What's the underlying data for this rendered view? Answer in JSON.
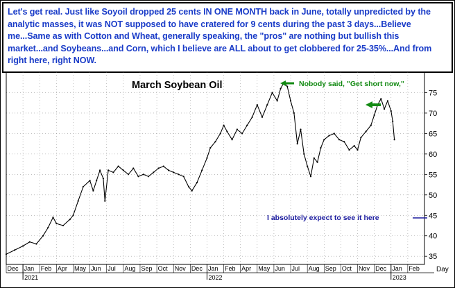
{
  "banner": {
    "text": "Let's get real. Just like Soyoil dropped 25 cents IN ONE MONTH back in June, totally unpredicted by the analytic masses, it was NOT supposed to have cratered for 9 cents during the past 3 days...Believe me...Same as with Cotton and Wheat, generally speaking, the \"pros\" are nothing but bullish this market...and Soybeans...and Corn, which I believe are ALL about to get clobbered for 25-35%...And from right here, right NOW."
  },
  "colors": {
    "price": "#000000",
    "grid": "#999999",
    "annotation_green": "#138a13",
    "annotation_blue": "#1a1a9e",
    "banner_text": "#1a3cc8"
  },
  "chart_data": {
    "type": "line",
    "title": "March Soybean Oil",
    "xlabel": "",
    "ylabel": "",
    "ylim": [
      33,
      80
    ],
    "y_ticks": [
      35,
      40,
      45,
      50,
      55,
      60,
      65,
      70,
      75
    ],
    "grid": true,
    "x_month_labels": [
      "Dec",
      "Jan",
      "Feb",
      "Apr",
      "May",
      "Jun",
      "Jul",
      "Aug",
      "Sep",
      "Oct",
      "Nov",
      "Dec",
      "Jan",
      "Feb",
      "Apr",
      "May",
      "Jun",
      "Jul",
      "Aug",
      "Sep",
      "Oct",
      "Nov",
      "Dec",
      "Jan",
      "Feb"
    ],
    "x_year_labels": [
      "2021",
      "2022",
      "2023"
    ],
    "x_axis_unit_label": "Day",
    "series": [
      {
        "values_month_index_price": [
          [
            0.0,
            35.5
          ],
          [
            0.5,
            36.5
          ],
          [
            1.0,
            37.5
          ],
          [
            1.4,
            38.5
          ],
          [
            1.8,
            38.0
          ],
          [
            2.2,
            40.0
          ],
          [
            2.5,
            42.0
          ],
          [
            2.8,
            44.5
          ],
          [
            3.0,
            43.0
          ],
          [
            3.4,
            42.5
          ],
          [
            3.8,
            44.0
          ],
          [
            4.0,
            45.0
          ],
          [
            4.3,
            48.5
          ],
          [
            4.6,
            52.0
          ],
          [
            5.0,
            53.5
          ],
          [
            5.2,
            51.0
          ],
          [
            5.4,
            53.5
          ],
          [
            5.6,
            56.0
          ],
          [
            5.8,
            54.0
          ],
          [
            5.9,
            48.5
          ],
          [
            6.1,
            56.0
          ],
          [
            6.4,
            55.5
          ],
          [
            6.7,
            57.0
          ],
          [
            7.0,
            56.0
          ],
          [
            7.3,
            55.0
          ],
          [
            7.6,
            56.5
          ],
          [
            7.9,
            54.5
          ],
          [
            8.2,
            55.0
          ],
          [
            8.5,
            54.5
          ],
          [
            8.8,
            55.5
          ],
          [
            9.1,
            56.5
          ],
          [
            9.4,
            57.0
          ],
          [
            9.7,
            56.0
          ],
          [
            10.0,
            55.5
          ],
          [
            10.3,
            55.0
          ],
          [
            10.6,
            54.5
          ],
          [
            10.9,
            52.0
          ],
          [
            11.1,
            51.0
          ],
          [
            11.4,
            53.0
          ],
          [
            11.7,
            56.0
          ],
          [
            12.0,
            59.0
          ],
          [
            12.2,
            61.5
          ],
          [
            12.5,
            63.0
          ],
          [
            12.8,
            65.0
          ],
          [
            13.0,
            67.0
          ],
          [
            13.2,
            65.5
          ],
          [
            13.5,
            63.5
          ],
          [
            13.8,
            66.0
          ],
          [
            14.1,
            65.0
          ],
          [
            14.4,
            67.0
          ],
          [
            14.7,
            69.0
          ],
          [
            15.0,
            72.0
          ],
          [
            15.3,
            69.0
          ],
          [
            15.6,
            72.0
          ],
          [
            15.9,
            75.0
          ],
          [
            16.2,
            73.0
          ],
          [
            16.4,
            76.0
          ],
          [
            16.6,
            77.5
          ],
          [
            16.8,
            76.5
          ],
          [
            17.0,
            73.0
          ],
          [
            17.2,
            70.0
          ],
          [
            17.4,
            62.5
          ],
          [
            17.6,
            66.0
          ],
          [
            17.8,
            60.0
          ],
          [
            18.0,
            57.0
          ],
          [
            18.2,
            54.5
          ],
          [
            18.4,
            59.0
          ],
          [
            18.6,
            58.0
          ],
          [
            18.8,
            61.5
          ],
          [
            19.0,
            63.5
          ],
          [
            19.3,
            64.5
          ],
          [
            19.6,
            65.0
          ],
          [
            19.9,
            63.5
          ],
          [
            20.2,
            63.0
          ],
          [
            20.5,
            61.0
          ],
          [
            20.8,
            62.0
          ],
          [
            21.0,
            61.0
          ],
          [
            21.2,
            64.0
          ],
          [
            21.5,
            65.5
          ],
          [
            21.8,
            67.0
          ],
          [
            22.0,
            69.5
          ],
          [
            22.2,
            72.0
          ],
          [
            22.4,
            73.5
          ],
          [
            22.6,
            71.0
          ],
          [
            22.8,
            73.0
          ],
          [
            23.0,
            70.5
          ],
          [
            23.1,
            68.0
          ],
          [
            23.2,
            63.5
          ]
        ]
      }
    ],
    "annotations": [
      {
        "text": "Nobody said, \"Get short now,\""
      },
      {
        "text": "I absolutely expect to see it here"
      }
    ]
  }
}
